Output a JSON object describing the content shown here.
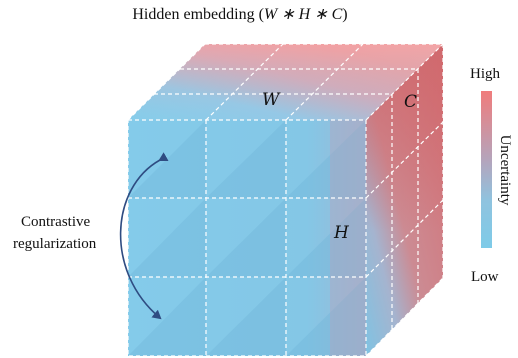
{
  "title": {
    "prefix": "Hidden embedding (",
    "expr": "W ∗ H ∗ C",
    "suffix": ")"
  },
  "cube": {
    "label_w": "W",
    "label_c": "C",
    "label_h": "H"
  },
  "annotation": {
    "line1": "Contrastive",
    "line2": "regularization"
  },
  "colorbar": {
    "high": "High",
    "low": "Low",
    "axis": "Uncertainty"
  },
  "colors": {
    "low": "#86cdea",
    "mid": "#a9b5d0",
    "high": "#ee8e8e",
    "arrow": "#2f4c82",
    "grid": "#ffffff"
  }
}
